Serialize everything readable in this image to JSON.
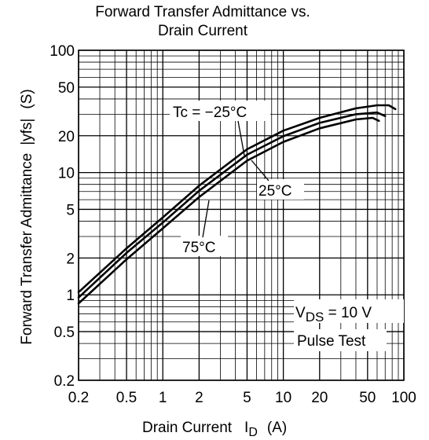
{
  "chart_data": {
    "type": "line",
    "title": [
      "Forward Transfer Admittance vs.",
      "Drain Current"
    ],
    "xlabel": {
      "main": "Drain Current",
      "symbol": "I",
      "subscript": "D",
      "unit": "(A)"
    },
    "ylabel": {
      "main": "Forward Transfer Admittance",
      "symbol": "|yfs|",
      "unit": "(S)"
    },
    "x_scale": "log",
    "y_scale": "log",
    "xlim": [
      0.2,
      100
    ],
    "ylim": [
      0.2,
      100
    ],
    "x_ticks": [
      {
        "value": 0.2,
        "label": "0.2"
      },
      {
        "value": 0.5,
        "label": "0.5"
      },
      {
        "value": 1,
        "label": "1"
      },
      {
        "value": 2,
        "label": "2"
      },
      {
        "value": 5,
        "label": "5"
      },
      {
        "value": 10,
        "label": "10"
      },
      {
        "value": 20,
        "label": "20"
      },
      {
        "value": 50,
        "label": "50"
      },
      {
        "value": 100,
        "label": "100"
      }
    ],
    "y_ticks": [
      {
        "value": 0.2,
        "label": "0.2"
      },
      {
        "value": 0.5,
        "label": "0.5"
      },
      {
        "value": 1,
        "label": "1"
      },
      {
        "value": 2,
        "label": "2"
      },
      {
        "value": 5,
        "label": "5"
      },
      {
        "value": 10,
        "label": "10"
      },
      {
        "value": 20,
        "label": "20"
      },
      {
        "value": 50,
        "label": "50"
      },
      {
        "value": 100,
        "label": "100"
      }
    ],
    "grid": true,
    "series": [
      {
        "name": "Tc = −25°C",
        "x": [
          0.2,
          0.5,
          1,
          2,
          5,
          10,
          20,
          40,
          60,
          75,
          85
        ],
        "y": [
          1.05,
          2.4,
          4.3,
          7.8,
          15.5,
          22,
          28,
          33.5,
          35.5,
          35.5,
          33
        ]
      },
      {
        "name": "25°C",
        "x": [
          0.2,
          0.5,
          1,
          2,
          5,
          10,
          20,
          40,
          60,
          70
        ],
        "y": [
          0.95,
          2.2,
          3.9,
          7.1,
          14,
          19.8,
          25.5,
          30,
          31,
          29
        ]
      },
      {
        "name": "75°C",
        "x": [
          0.2,
          0.5,
          1,
          2,
          5,
          10,
          20,
          40,
          55,
          62
        ],
        "y": [
          0.85,
          1.95,
          3.5,
          6.3,
          12.5,
          17.8,
          23,
          27.2,
          28,
          26.5
        ]
      }
    ],
    "annotations": {
      "tc_label": "Tc = −25°C",
      "label_25": "25°C",
      "label_75": "75°C",
      "vds_main": "V",
      "vds_sub": "DS",
      "vds_value": " = 10 V",
      "pulse_test": "Pulse Test"
    }
  }
}
